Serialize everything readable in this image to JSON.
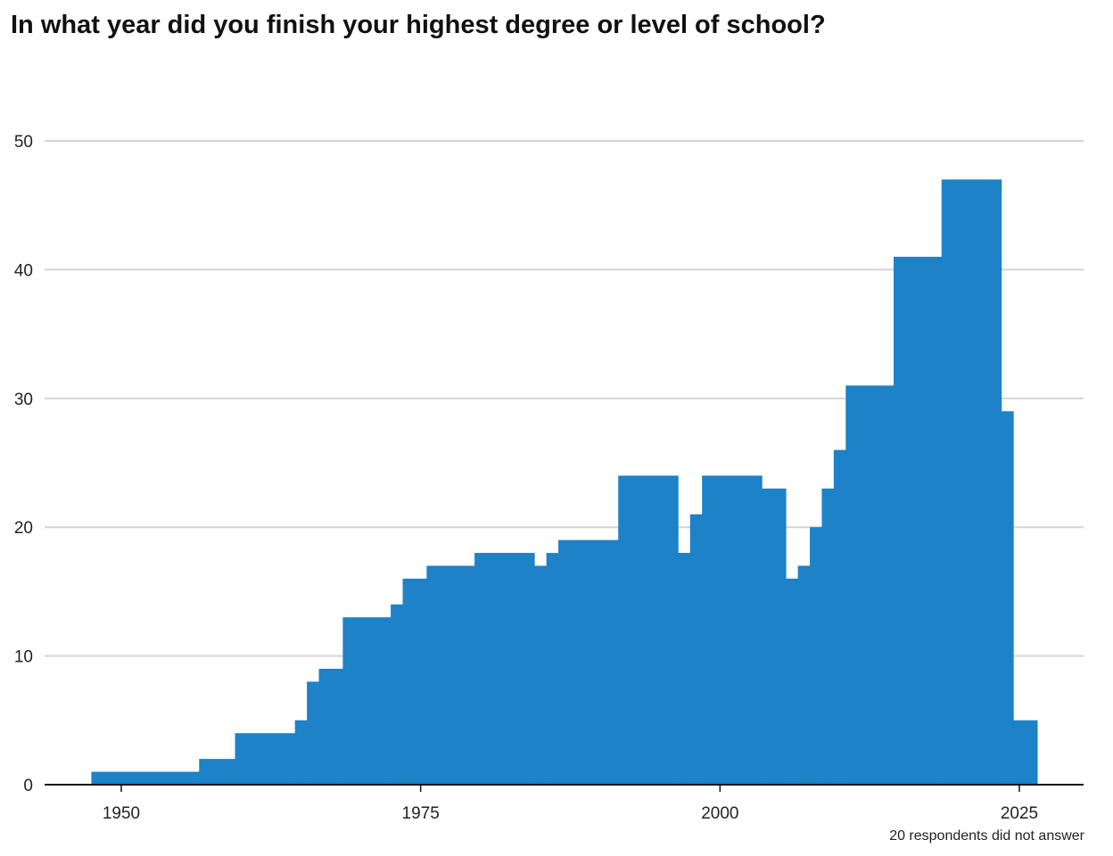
{
  "chart_data": {
    "type": "bar",
    "title": "In what year did you finish your highest degree or level of school?",
    "xlabel": "",
    "ylabel": "",
    "footnote": "20 respondents did not answer",
    "x_ticks": [
      1950,
      1975,
      2000,
      2025
    ],
    "y_ticks": [
      0,
      10,
      20,
      30,
      40,
      50
    ],
    "xlim": [
      1944.4,
      2030
    ],
    "ylim": [
      0,
      50
    ],
    "grid": true,
    "color": "#1d82c7",
    "bars": [
      {
        "start": 1947.5,
        "end": 1956.5,
        "value": 1
      },
      {
        "start": 1956.5,
        "end": 1959.5,
        "value": 2
      },
      {
        "start": 1959.5,
        "end": 1964.5,
        "value": 4
      },
      {
        "start": 1964.5,
        "end": 1965.5,
        "value": 5
      },
      {
        "start": 1965.5,
        "end": 1966.5,
        "value": 8
      },
      {
        "start": 1966.5,
        "end": 1968.5,
        "value": 9
      },
      {
        "start": 1968.5,
        "end": 1972.5,
        "value": 13
      },
      {
        "start": 1972.5,
        "end": 1973.5,
        "value": 14
      },
      {
        "start": 1973.5,
        "end": 1975.5,
        "value": 16
      },
      {
        "start": 1975.5,
        "end": 1979.5,
        "value": 17
      },
      {
        "start": 1979.5,
        "end": 1984.5,
        "value": 18
      },
      {
        "start": 1984.5,
        "end": 1985.5,
        "value": 17
      },
      {
        "start": 1985.5,
        "end": 1986.5,
        "value": 18
      },
      {
        "start": 1986.5,
        "end": 1991.5,
        "value": 19
      },
      {
        "start": 1991.5,
        "end": 1996.5,
        "value": 24
      },
      {
        "start": 1996.5,
        "end": 1997.5,
        "value": 18
      },
      {
        "start": 1997.5,
        "end": 1998.5,
        "value": 21
      },
      {
        "start": 1998.5,
        "end": 2003.5,
        "value": 24
      },
      {
        "start": 2003.5,
        "end": 2005.5,
        "value": 23
      },
      {
        "start": 2005.5,
        "end": 2006.5,
        "value": 16
      },
      {
        "start": 2006.5,
        "end": 2007.5,
        "value": 17
      },
      {
        "start": 2007.5,
        "end": 2008.5,
        "value": 20
      },
      {
        "start": 2008.5,
        "end": 2009.5,
        "value": 23
      },
      {
        "start": 2009.5,
        "end": 2010.5,
        "value": 26
      },
      {
        "start": 2010.5,
        "end": 2014.5,
        "value": 31
      },
      {
        "start": 2014.5,
        "end": 2018.5,
        "value": 41
      },
      {
        "start": 2018.5,
        "end": 2023.5,
        "value": 47
      },
      {
        "start": 2023.5,
        "end": 2024.5,
        "value": 29
      },
      {
        "start": 2024.5,
        "end": 2026.5,
        "value": 5
      }
    ]
  }
}
